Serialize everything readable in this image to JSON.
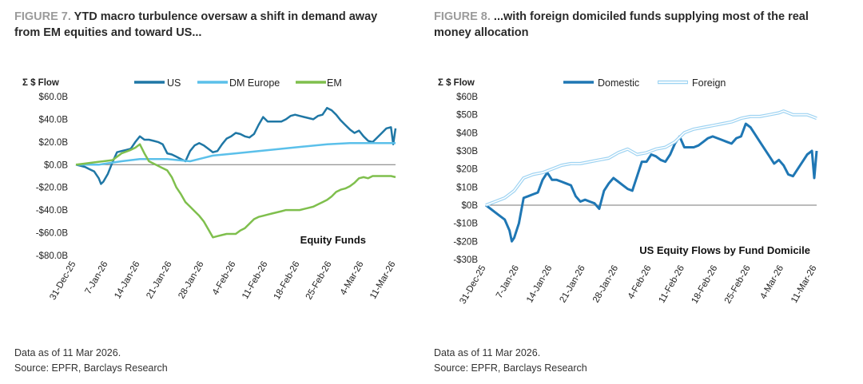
{
  "left": {
    "figure_number": "FIGURE 7.",
    "title_line1": " YTD macro turbulence oversaw a shift in demand away",
    "title_line2": "from EM equities and toward US...",
    "footnote_line1": "Data as of 11 Mar 2026.",
    "footnote_line2": "Source: EPFR, Barclays Research"
  },
  "right": {
    "figure_number": "FIGURE 8.",
    "title_line1": " ...with foreign domiciled funds supplying most of the real",
    "title_line2": "money allocation",
    "footnote_line1": "Data as of 11 Mar 2026.",
    "footnote_line2": "Source: EPFR, Barclays Research"
  },
  "chart_data": [
    {
      "type": "line",
      "ylabel": "Σ $ Flow",
      "annotation": "Equity Funds",
      "ylim": [
        -80,
        60
      ],
      "yticks": [
        60,
        40,
        20,
        0,
        -20,
        -40,
        -60,
        -80
      ],
      "ytick_labels": [
        "$60.0B",
        "$40.0B",
        "$20.0B",
        "$0.0B",
        "-$20.0B",
        "-$40.0B",
        "-$60.0B",
        "-$80.0B"
      ],
      "xlim": [
        0,
        70
      ],
      "xticks": [
        0,
        7,
        14,
        21,
        28,
        35,
        42,
        49,
        56,
        63,
        70
      ],
      "xtick_labels": [
        "31-Dec-25",
        "7-Jan-26",
        "14-Jan-26",
        "21-Jan-26",
        "28-Jan-26",
        "4-Feb-26",
        "11-Feb-26",
        "18-Feb-26",
        "25-Feb-26",
        "4-Mar-26",
        "11-Mar-26"
      ],
      "legend_position": "top",
      "series": [
        {
          "name": "US",
          "color": "#1f77a5",
          "width": 2.5,
          "style": "solid",
          "x": [
            0,
            1,
            2,
            3,
            4,
            5,
            5.5,
            6,
            7,
            8,
            9,
            10,
            11,
            12,
            13,
            14,
            15,
            16,
            17,
            18,
            19,
            20,
            21,
            22,
            23,
            24,
            25,
            26,
            27,
            28,
            29,
            30,
            31,
            32,
            33,
            34,
            35,
            36,
            37,
            38,
            39,
            40,
            41,
            42,
            43,
            44,
            45,
            46,
            47,
            48,
            49,
            50,
            51,
            52,
            53,
            54,
            55,
            56,
            57,
            58,
            59,
            60,
            61,
            62,
            63,
            64,
            65,
            66,
            67,
            68,
            69,
            69.5,
            70
          ],
          "y": [
            0,
            -1,
            -2,
            -4,
            -6,
            -12,
            -17,
            -15,
            -8,
            2,
            11,
            12,
            13,
            14,
            20,
            25,
            22,
            22,
            21,
            20,
            18,
            10,
            9,
            7,
            5,
            3,
            12,
            17,
            19,
            17,
            14,
            11,
            12,
            18,
            23,
            25,
            28,
            27,
            25,
            24,
            27,
            35,
            42,
            38,
            38,
            38,
            38,
            40,
            43,
            44,
            43,
            42,
            41,
            40,
            43,
            44,
            50,
            48,
            44,
            39,
            35,
            31,
            28,
            30,
            25,
            21,
            20,
            24,
            28,
            32,
            33,
            18,
            32
          ]
        },
        {
          "name": "DM Europe",
          "color": "#5bc0ea",
          "width": 2.5,
          "style": "solid",
          "x": [
            0,
            5,
            10,
            14,
            20,
            25,
            30,
            35,
            40,
            45,
            50,
            55,
            60,
            65,
            70
          ],
          "y": [
            0,
            0,
            3,
            5,
            5,
            3,
            8,
            10,
            12,
            14,
            16,
            18,
            19,
            19,
            19
          ]
        },
        {
          "name": "EM",
          "color": "#7fbf4d",
          "width": 2.5,
          "style": "solid",
          "x": [
            0,
            2,
            4,
            6,
            8,
            10,
            12,
            13,
            14,
            15,
            16,
            17,
            18,
            19,
            20,
            21,
            22,
            23,
            24,
            25,
            26,
            27,
            28,
            29,
            30,
            31,
            32,
            33,
            34,
            35,
            36,
            37,
            38,
            39,
            40,
            41,
            42,
            43,
            44,
            45,
            46,
            47,
            48,
            49,
            50,
            51,
            52,
            53,
            54,
            55,
            56,
            57,
            58,
            59,
            60,
            61,
            62,
            63,
            64,
            65,
            66,
            67,
            68,
            69,
            70
          ],
          "y": [
            0,
            1,
            2,
            3,
            4,
            10,
            13,
            15,
            18,
            10,
            3,
            1,
            -1,
            -3,
            -5,
            -11,
            -20,
            -26,
            -33,
            -37,
            -41,
            -45,
            -50,
            -57,
            -64,
            -63,
            -62,
            -61,
            -61,
            -61,
            -58,
            -56,
            -52,
            -48,
            -46,
            -45,
            -44,
            -43,
            -42,
            -41,
            -40,
            -40,
            -40,
            -40,
            -39,
            -38,
            -37,
            -35,
            -33,
            -31,
            -28,
            -24,
            -22,
            -21,
            -19,
            -16,
            -12,
            -11,
            -12,
            -10,
            -10,
            -10,
            -10,
            -10,
            -11
          ]
        }
      ]
    },
    {
      "type": "line",
      "ylabel": "Σ $ Flow",
      "annotation": "US Equity Flows by Fund Domicile",
      "ylim": [
        -30,
        60
      ],
      "yticks": [
        60,
        50,
        40,
        30,
        20,
        10,
        0,
        -10,
        -20,
        -30
      ],
      "ytick_labels": [
        "$60B",
        "$50B",
        "$40B",
        "$30B",
        "$20B",
        "$10B",
        "$0B",
        "-$10B",
        "-$20B",
        "-$30B"
      ],
      "xlim": [
        0,
        70
      ],
      "xticks": [
        0,
        7,
        14,
        21,
        28,
        35,
        42,
        49,
        56,
        63,
        70
      ],
      "xtick_labels": [
        "31-Dec-25",
        "7-Jan-26",
        "14-Jan-26",
        "21-Jan-26",
        "28-Jan-26",
        "4-Feb-26",
        "11-Feb-26",
        "18-Feb-26",
        "25-Feb-26",
        "4-Mar-26",
        "11-Mar-26"
      ],
      "legend_position": "top",
      "series": [
        {
          "name": "Domestic",
          "color": "#1f77b4",
          "width": 3,
          "style": "solid",
          "x": [
            0,
            1,
            2,
            3,
            4,
            5,
            5.5,
            6,
            7,
            8,
            9,
            10,
            11,
            12,
            13,
            14,
            15,
            16,
            17,
            18,
            19,
            20,
            21,
            22,
            23,
            24,
            25,
            26,
            27,
            28,
            29,
            30,
            31,
            32,
            33,
            34,
            35,
            36,
            37,
            38,
            39,
            40,
            41,
            42,
            43,
            44,
            45,
            46,
            47,
            48,
            49,
            50,
            51,
            52,
            53,
            54,
            55,
            56,
            57,
            58,
            59,
            60,
            61,
            62,
            63,
            64,
            65,
            66,
            67,
            68,
            69,
            69.5,
            70
          ],
          "y": [
            0,
            -2,
            -4,
            -6,
            -8,
            -14,
            -20,
            -18,
            -10,
            4,
            5,
            6,
            7,
            14,
            18,
            14,
            14,
            13,
            12,
            11,
            5,
            2,
            3,
            2,
            1,
            -2,
            8,
            12,
            15,
            13,
            11,
            9,
            8,
            16,
            24,
            24,
            28,
            27,
            25,
            24,
            28,
            34,
            38,
            32,
            32,
            32,
            33,
            35,
            37,
            38,
            37,
            36,
            35,
            34,
            37,
            38,
            45,
            43,
            39,
            35,
            31,
            27,
            23,
            25,
            22,
            17,
            16,
            20,
            24,
            28,
            30,
            15,
            30
          ]
        },
        {
          "name": "Foreign",
          "color": "#9ed3f2",
          "width": 3,
          "style": "double",
          "x": [
            0,
            2,
            4,
            6,
            8,
            10,
            12,
            14,
            16,
            18,
            20,
            22,
            24,
            26,
            28,
            30,
            32,
            34,
            36,
            38,
            40,
            42,
            44,
            46,
            48,
            50,
            52,
            54,
            56,
            58,
            60,
            62,
            63,
            64,
            65,
            66,
            67,
            68,
            69,
            70
          ],
          "y": [
            0,
            2,
            4,
            8,
            15,
            17,
            18,
            20,
            22,
            23,
            23,
            24,
            25,
            26,
            29,
            31,
            28,
            29,
            31,
            32,
            35,
            40,
            42,
            43,
            44,
            45,
            46,
            48,
            49,
            49,
            50,
            51,
            52,
            51,
            50,
            50,
            50,
            50,
            49,
            48
          ]
        }
      ]
    }
  ]
}
